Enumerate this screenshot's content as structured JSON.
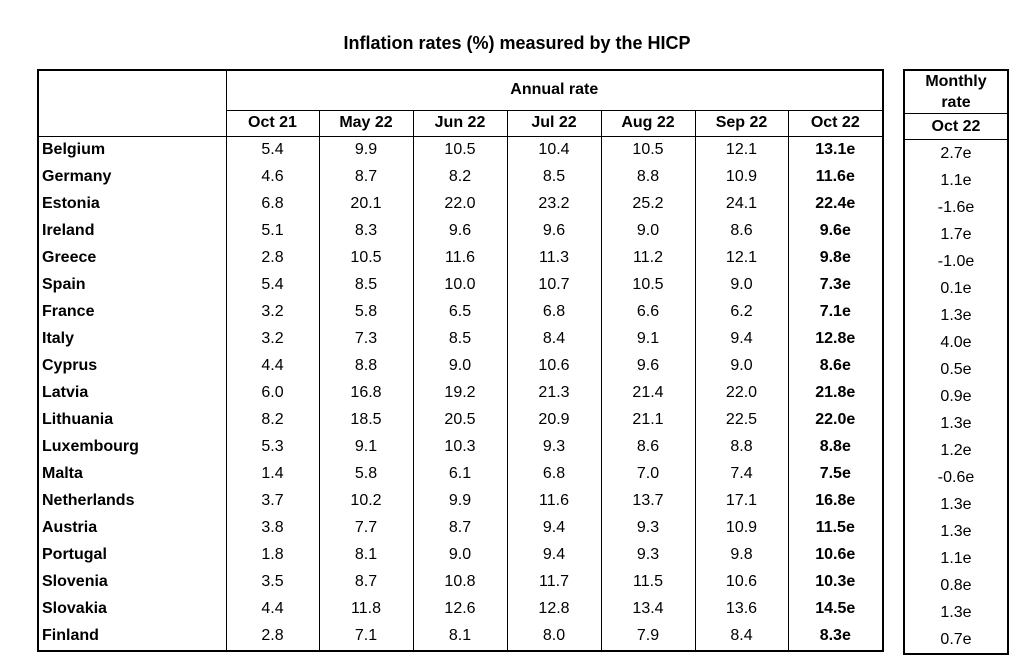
{
  "title": "Inflation rates (%) measured by the HICP",
  "table": {
    "group_header": "Annual rate",
    "columns": [
      "Oct 21",
      "May 22",
      "Jun 22",
      "Jul 22",
      "Aug 22",
      "Sep 22",
      "Oct 22"
    ],
    "monthly_header": "Monthly rate",
    "monthly_column": "Oct 22",
    "rows": [
      [
        "Belgium",
        "5.4",
        "9.9",
        "10.5",
        "10.4",
        "10.5",
        "12.1",
        "13.1e",
        "2.7e"
      ],
      [
        "Germany",
        "4.6",
        "8.7",
        "8.2",
        "8.5",
        "8.8",
        "10.9",
        "11.6e",
        "1.1e"
      ],
      [
        "Estonia",
        "6.8",
        "20.1",
        "22.0",
        "23.2",
        "25.2",
        "24.1",
        "22.4e",
        "-1.6e"
      ],
      [
        "Ireland",
        "5.1",
        "8.3",
        "9.6",
        "9.6",
        "9.0",
        "8.6",
        "9.6e",
        "1.7e"
      ],
      [
        "Greece",
        "2.8",
        "10.5",
        "11.6",
        "11.3",
        "11.2",
        "12.1",
        "9.8e",
        "-1.0e"
      ],
      [
        "Spain",
        "5.4",
        "8.5",
        "10.0",
        "10.7",
        "10.5",
        "9.0",
        "7.3e",
        "0.1e"
      ],
      [
        "France",
        "3.2",
        "5.8",
        "6.5",
        "6.8",
        "6.6",
        "6.2",
        "7.1e",
        "1.3e"
      ],
      [
        "Italy",
        "3.2",
        "7.3",
        "8.5",
        "8.4",
        "9.1",
        "9.4",
        "12.8e",
        "4.0e"
      ],
      [
        "Cyprus",
        "4.4",
        "8.8",
        "9.0",
        "10.6",
        "9.6",
        "9.0",
        "8.6e",
        "0.5e"
      ],
      [
        "Latvia",
        "6.0",
        "16.8",
        "19.2",
        "21.3",
        "21.4",
        "22.0",
        "21.8e",
        "0.9e"
      ],
      [
        "Lithuania",
        "8.2",
        "18.5",
        "20.5",
        "20.9",
        "21.1",
        "22.5",
        "22.0e",
        "1.3e"
      ],
      [
        "Luxembourg",
        "5.3",
        "9.1",
        "10.3",
        "9.3",
        "8.6",
        "8.8",
        "8.8e",
        "1.2e"
      ],
      [
        "Malta",
        "1.4",
        "5.8",
        "6.1",
        "6.8",
        "7.0",
        "7.4",
        "7.5e",
        "-0.6e"
      ],
      [
        "Netherlands",
        "3.7",
        "10.2",
        "9.9",
        "11.6",
        "13.7",
        "17.1",
        "16.8e",
        "1.3e"
      ],
      [
        "Austria",
        "3.8",
        "7.7",
        "8.7",
        "9.4",
        "9.3",
        "10.9",
        "11.5e",
        "1.3e"
      ],
      [
        "Portugal",
        "1.8",
        "8.1",
        "9.0",
        "9.4",
        "9.3",
        "9.8",
        "10.6e",
        "1.1e"
      ],
      [
        "Slovenia",
        "3.5",
        "8.7",
        "10.8",
        "11.7",
        "11.5",
        "10.6",
        "10.3e",
        "0.8e"
      ],
      [
        "Slovakia",
        "4.4",
        "11.8",
        "12.6",
        "12.8",
        "13.4",
        "13.6",
        "14.5e",
        "1.3e"
      ],
      [
        "Finland",
        "2.8",
        "7.1",
        "8.1",
        "8.0",
        "7.9",
        "8.4",
        "8.3e",
        "0.7e"
      ]
    ]
  }
}
